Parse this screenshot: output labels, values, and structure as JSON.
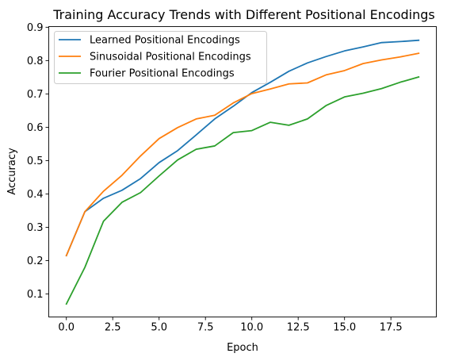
{
  "chart_data": {
    "type": "line",
    "title": "Training Accuracy Trends with Different Positional Encodings",
    "xlabel": "Epoch",
    "ylabel": "Accuracy",
    "xlim": [
      -0.95,
      19.95
    ],
    "ylim": [
      0.031,
      0.902
    ],
    "xticks": [
      0.0,
      2.5,
      5.0,
      7.5,
      10.0,
      12.5,
      15.0,
      17.5
    ],
    "xtick_labels": [
      "0.0",
      "2.5",
      "5.0",
      "7.5",
      "10.0",
      "12.5",
      "15.0",
      "17.5"
    ],
    "yticks": [
      0.1,
      0.2,
      0.3,
      0.4,
      0.5,
      0.6,
      0.7,
      0.8,
      0.9
    ],
    "ytick_labels": [
      "0.1",
      "0.2",
      "0.3",
      "0.4",
      "0.5",
      "0.6",
      "0.7",
      "0.8",
      "0.9"
    ],
    "grid": false,
    "legend_position": "top-left",
    "x": [
      0,
      1,
      2,
      3,
      4,
      5,
      6,
      7,
      8,
      9,
      10,
      11,
      12,
      13,
      14,
      15,
      16,
      17,
      18,
      19
    ],
    "series": [
      {
        "name": "Learned Positional Encodings",
        "color": "#1f77b4",
        "values": [
          0.215,
          0.347,
          0.387,
          0.411,
          0.446,
          0.494,
          0.53,
          0.577,
          0.625,
          0.663,
          0.704,
          0.735,
          0.768,
          0.793,
          0.812,
          0.829,
          0.841,
          0.854,
          0.857,
          0.861
        ]
      },
      {
        "name": "Sinusoidal Positional Encodings",
        "color": "#ff7f0e",
        "values": [
          0.215,
          0.347,
          0.408,
          0.456,
          0.514,
          0.566,
          0.599,
          0.625,
          0.636,
          0.673,
          0.701,
          0.715,
          0.73,
          0.733,
          0.757,
          0.77,
          0.791,
          0.802,
          0.811,
          0.822
        ]
      },
      {
        "name": "Fourier Positional Encodings",
        "color": "#2ca02c",
        "values": [
          0.07,
          0.18,
          0.318,
          0.375,
          0.404,
          0.454,
          0.502,
          0.534,
          0.544,
          0.584,
          0.59,
          0.615,
          0.606,
          0.625,
          0.665,
          0.691,
          0.702,
          0.716,
          0.735,
          0.751
        ]
      }
    ]
  }
}
